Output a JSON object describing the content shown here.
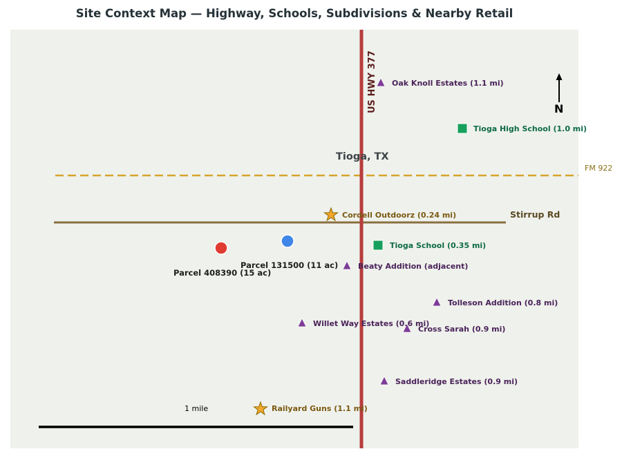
{
  "title": "Site Context Map — Highway, Schools, Subdivisions & Nearby Retail",
  "town": "Tioga, TX",
  "roads": {
    "highway": "US HWY 377",
    "fm": "FM 922",
    "stirrup": "Stirrup Rd"
  },
  "north_label": "N",
  "scale_label": "1 mile",
  "colors": {
    "map_bg": "#eff1ec",
    "highway": "#b83c3c",
    "fm_road": "#d6a32a",
    "stirrup_road": "#8a7040",
    "subdivision": "#7d3c98",
    "school": "#16a05d",
    "retail": "#f2a72c",
    "parcel_408390": "#e03c31",
    "parcel_131500": "#3f86e8"
  },
  "parcels": [
    {
      "id": "408390",
      "label": "Parcel 408390 (15 ac)"
    },
    {
      "id": "131500",
      "label": "Parcel 131500 (11 ac)"
    }
  ],
  "schools": [
    {
      "label": "Tioga High School (1.0 mi)"
    },
    {
      "label": "Tioga School (0.35 mi)"
    }
  ],
  "retail": [
    {
      "label": "Cordell Outdoorz (0.24 mi)"
    },
    {
      "label": "Railyard Guns (1.1 mi)"
    }
  ],
  "subdivisions": [
    {
      "label": "Oak Knoll Estates (1.1 mi)"
    },
    {
      "label": "Beaty Addition (adjacent)"
    },
    {
      "label": "Tolleson Addition (0.8 mi)"
    },
    {
      "label": "Willet Way Estates (0.6 mi)"
    },
    {
      "label": "Cross Sarah (0.9 mi)"
    },
    {
      "label": "Saddleridge Estates (0.9 mi)"
    }
  ]
}
